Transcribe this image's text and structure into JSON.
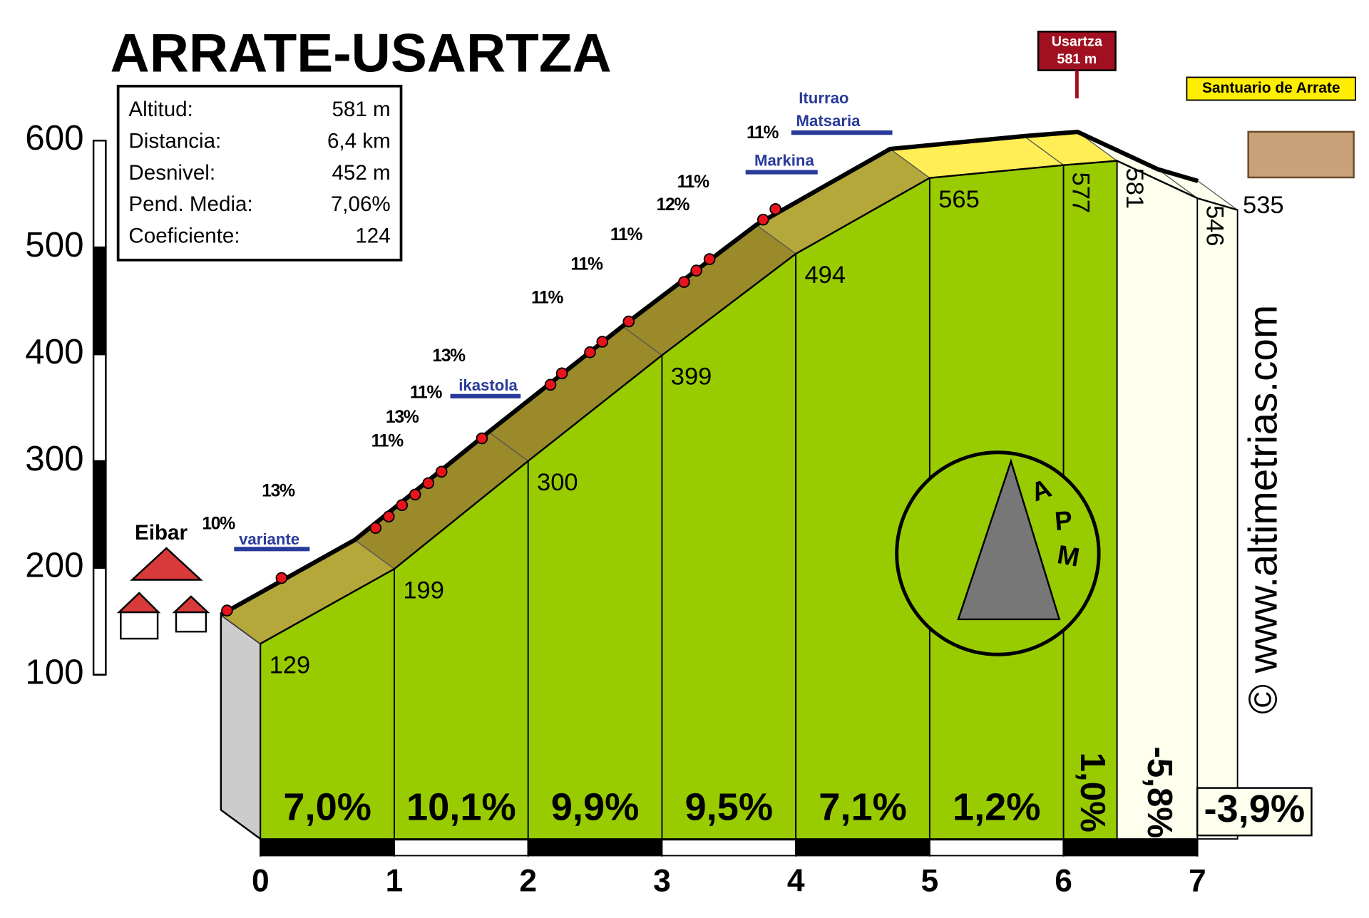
{
  "chart_data": {
    "type": "profile",
    "title": "ARRATE-USARTZA",
    "x": [
      0,
      1,
      2,
      3,
      4,
      5,
      6,
      6.4,
      7,
      7.3
    ],
    "values": [
      129,
      199,
      300,
      399,
      494,
      565,
      577,
      581,
      546,
      535
    ],
    "gradients": {
      "values": [
        7.0,
        10.1,
        9.9,
        9.5,
        7.1,
        1.2,
        1.0,
        -5.8,
        -3.9
      ],
      "value_labels": [
        "7,0%",
        "10,1%",
        "9,9%",
        "9,5%",
        "7,1%",
        "1,2%",
        "1,0%",
        "-5,8%",
        "-3,9%"
      ]
    },
    "face_colors": [
      "#99cc00",
      "#99cc00",
      "#99cc00",
      "#99cc00",
      "#99cc00",
      "#99cc00",
      "#99cc00",
      "#ffffee",
      "#ffffee"
    ],
    "surface_colors": [
      "#b5a83a",
      "#9a8a2a",
      "#9a8a2a",
      "#9a8a2a",
      "#b5a83a",
      "#ffee55",
      "#ffee55",
      "#ffffee",
      "#ffffee"
    ],
    "xlim": [
      0,
      7.3
    ],
    "xticks": [
      0,
      1,
      2,
      3,
      4,
      5,
      6,
      7
    ],
    "ylim": [
      100,
      600
    ],
    "yticks": [
      100,
      200,
      300,
      400,
      500,
      600
    ],
    "info": [
      [
        "Altitud:",
        "581 m"
      ],
      [
        "Distancia:",
        "6,4 km"
      ],
      [
        "Desnivel:",
        "452 m"
      ],
      [
        "Pend. Media:",
        "7,06%"
      ],
      [
        "Coeficiente:",
        "124"
      ]
    ],
    "annotations": [
      "10%",
      "13%",
      "11%",
      "13%",
      "11%",
      "13%",
      "11%",
      "11%",
      "11%",
      "12%",
      "11%",
      "11%"
    ],
    "places": [
      "Eibar",
      "variante",
      "ikastola",
      "Markina",
      "Iturrao",
      "Matsaria"
    ],
    "summit": [
      "Usartza",
      "581 m"
    ],
    "sanctuary": "Santuario de Arrate",
    "logo_letters": [
      "A",
      "P",
      "M"
    ],
    "credit": "© www.altimetrias.com"
  }
}
